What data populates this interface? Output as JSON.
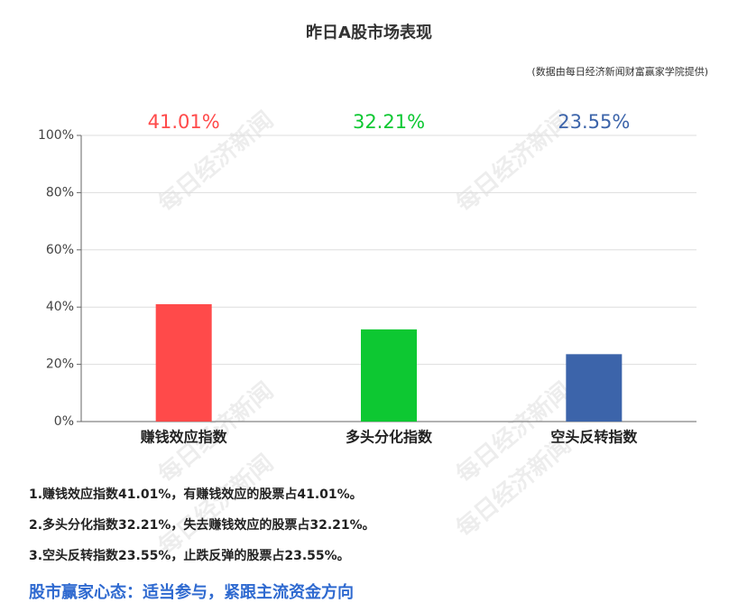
{
  "chart_data": {
    "type": "bar",
    "title": "昨日A股市场表现",
    "source": "(数据由每日经济新闻财富赢家学院提供)",
    "categories": [
      "赚钱效应指数",
      "多头分化指数",
      "空头反转指数"
    ],
    "values": [
      41.01,
      32.21,
      23.55
    ],
    "value_labels": [
      "41.01%",
      "32.21%",
      "23.55%"
    ],
    "colors": [
      "#ff4a4a",
      "#0dc832",
      "#3c64aa"
    ],
    "ylim": [
      0,
      100
    ],
    "yticks": [
      {
        "value": 0,
        "label": "0%"
      },
      {
        "value": 20,
        "label": "20%"
      },
      {
        "value": 40,
        "label": "40%"
      },
      {
        "value": 60,
        "label": "60%"
      },
      {
        "value": 80,
        "label": "80%"
      },
      {
        "value": 100,
        "label": "100%"
      }
    ],
    "grid": true
  },
  "notes": [
    "1.赚钱效应指数41.01%，有赚钱效应的股票占41.01%。",
    "2.多头分化指数32.21%，失去赚钱效应的股票占32.21%。",
    "3.空头反转指数23.55%，止跌反弹的股票占23.55%。"
  ],
  "conclusion": "股市赢家心态：适当参与，紧跟主流资金方向",
  "watermark": "每日经济新闻"
}
